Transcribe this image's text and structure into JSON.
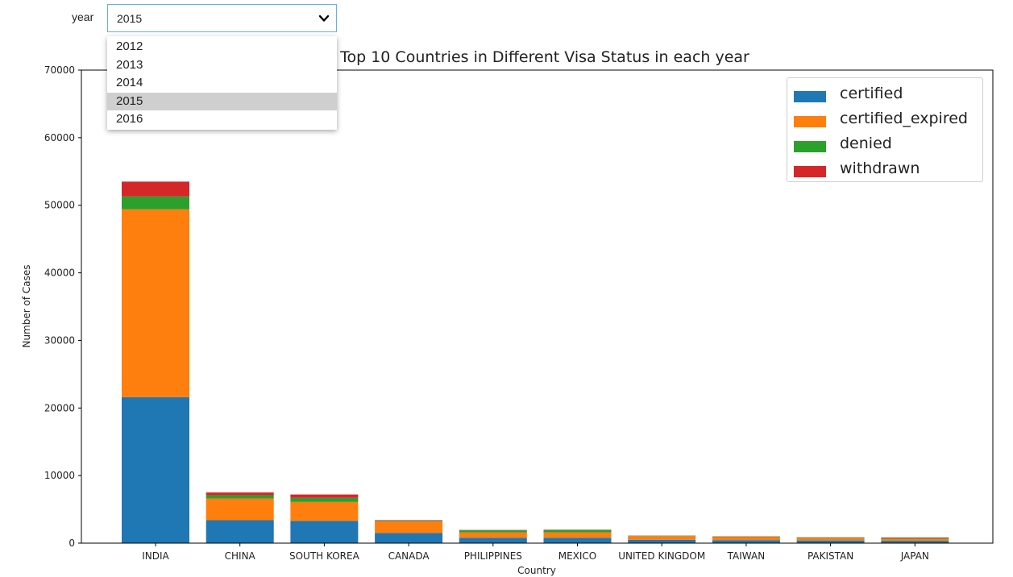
{
  "controls": {
    "year_label": "year",
    "selected_year": "2015",
    "options": [
      "2012",
      "2013",
      "2014",
      "2015",
      "2016"
    ]
  },
  "chart_data": {
    "type": "bar",
    "stacked": true,
    "title": "Top 10 Countries in Different Visa Status in each year",
    "xlabel": "Country",
    "ylabel": "Number of Cases",
    "ylim": [
      0,
      70000
    ],
    "yticks": [
      0,
      10000,
      20000,
      30000,
      40000,
      50000,
      60000,
      70000
    ],
    "grid": false,
    "legend_position": "top-right",
    "categories": [
      "INDIA",
      "CHINA",
      "SOUTH KOREA",
      "CANADA",
      "PHILIPPINES",
      "MEXICO",
      "UNITED KINGDOM",
      "TAIWAN",
      "PAKISTAN",
      "JAPAN"
    ],
    "series": [
      {
        "name": "certified",
        "color": "#1f77b4",
        "values": [
          21600,
          3400,
          3300,
          1500,
          800,
          800,
          500,
          450,
          400,
          350
        ]
      },
      {
        "name": "certified_expired",
        "color": "#ff7f0e",
        "values": [
          27800,
          3200,
          2800,
          1700,
          800,
          800,
          550,
          450,
          350,
          300
        ]
      },
      {
        "name": "denied",
        "color": "#2ca02c",
        "values": [
          1900,
          500,
          600,
          100,
          300,
          350,
          50,
          50,
          80,
          100
        ]
      },
      {
        "name": "withdrawn",
        "color": "#d62728",
        "values": [
          2200,
          400,
          500,
          100,
          50,
          50,
          30,
          50,
          40,
          100
        ]
      }
    ]
  }
}
